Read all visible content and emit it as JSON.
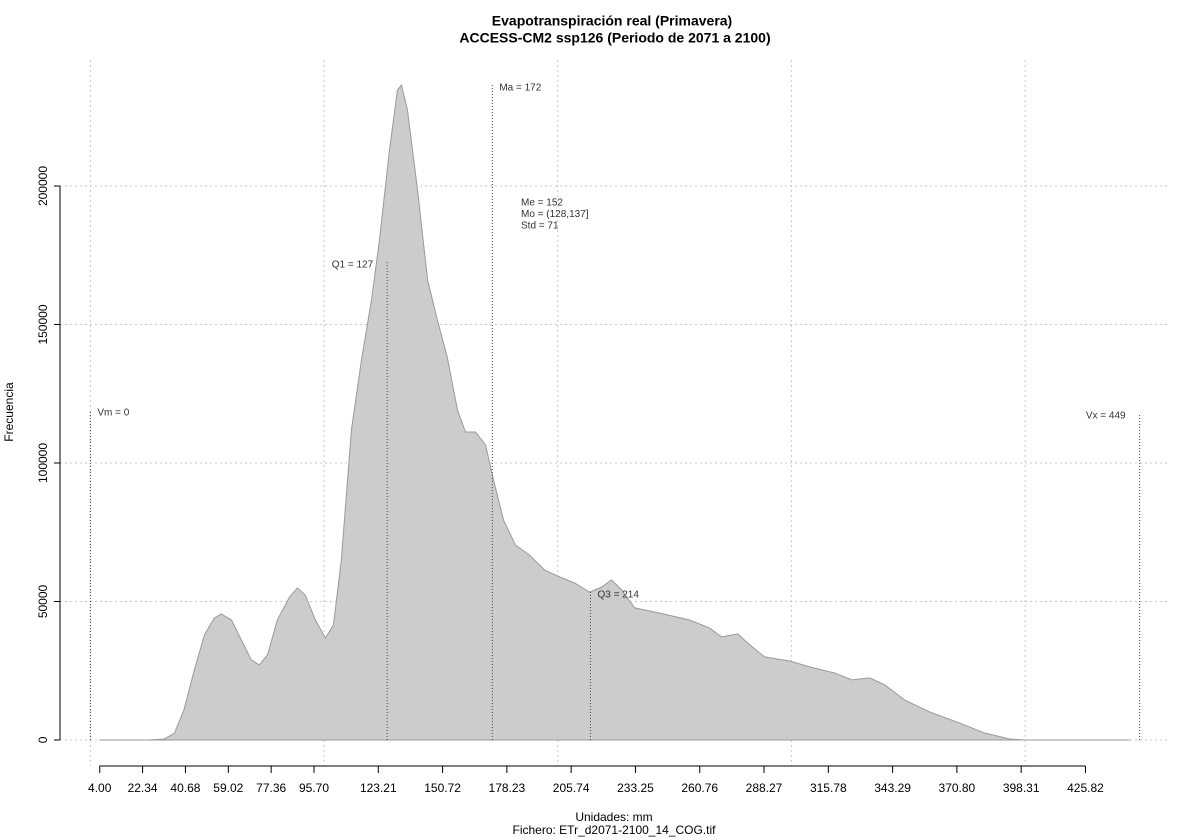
{
  "chart_data": {
    "type": "area",
    "title": "Evapotranspiración real (Primavera)",
    "subtitle": "ACCESS-CM2 ssp126 (Periodo de 2071 a 2100)",
    "xlabel": "Unidades: mm",
    "caption": "Fichero: ETr_d2071-2100_14_COG.tif",
    "ylabel": "Frecuencia",
    "color": "#cccccc",
    "line_color": "#9a9a9a",
    "grid": true,
    "xlim": [
      -13,
      462
    ],
    "ylim": [
      -9400,
      245500
    ],
    "yticks": [
      0,
      50000,
      100000,
      150000,
      200000
    ],
    "xgrid": [
      0,
      100,
      200,
      300,
      400
    ],
    "xticks": [
      {
        "value": 4,
        "label": "4.00"
      },
      22.34,
      40.68,
      59.02,
      77.36,
      {
        "value": 95.7,
        "label": "95.70"
      },
      123.21,
      150.72,
      178.23,
      205.74,
      233.25,
      260.76,
      288.27,
      315.78,
      343.29,
      {
        "value": 370.8,
        "label": "370.80"
      },
      398.31,
      425.82
    ],
    "x": [
      3.9,
      25,
      31.7,
      36,
      40,
      44.5,
      48.8,
      53,
      56,
      60.4,
      64.6,
      68.9,
      72.3,
      75.8,
      80,
      85.2,
      88.6,
      92,
      96.3,
      100.6,
      104,
      107.4,
      111.7,
      116,
      120.3,
      123.7,
      128,
      131.4,
      133.1,
      135.7,
      140,
      144.3,
      148.5,
      152.8,
      157.1,
      160.5,
      164.8,
      169.1,
      172.5,
      176.8,
      181.9,
      187.9,
      194.3,
      199.9,
      207.2,
      213.6,
      218.8,
      223,
      227.3,
      232.9,
      243.6,
      256.4,
      265,
      270.1,
      277,
      281.3,
      288.5,
      299.2,
      307.8,
      318.5,
      325.8,
      333.5,
      339.9,
      348.5,
      359.2,
      372,
      382.7,
      393.4,
      399.8,
      444.8
    ],
    "values": [
      0,
      0,
      360,
      2500,
      10800,
      25300,
      37900,
      44000,
      45500,
      43300,
      36100,
      28900,
      27100,
      30700,
      43300,
      51600,
      54900,
      52300,
      43300,
      36800,
      41500,
      65000,
      111900,
      137200,
      158800,
      180500,
      213000,
      234700,
      236500,
      227400,
      198600,
      166100,
      151600,
      137900,
      119100,
      111200,
      111200,
      106500,
      93900,
      79400,
      70400,
      66800,
      61400,
      59200,
      56700,
      53400,
      55200,
      57800,
      54200,
      47700,
      45800,
      43300,
      40400,
      37200,
      38300,
      35000,
      30000,
      28500,
      26400,
      24200,
      21700,
      22400,
      19900,
      14400,
      10100,
      6100,
      2500,
      360,
      0,
      0
    ],
    "markers": [
      {
        "label": "Vm = 0",
        "x": 0
      },
      {
        "label": "Q1 = 127",
        "x": 127
      },
      {
        "label": "Ma = 172",
        "x": 172
      },
      {
        "label": "Q3 = 214",
        "x": 214
      },
      {
        "label": "Vx = 449",
        "x": 449
      }
    ],
    "stats": [
      "Me = 152",
      "Mo = (128,137]",
      "Std = 71"
    ]
  }
}
